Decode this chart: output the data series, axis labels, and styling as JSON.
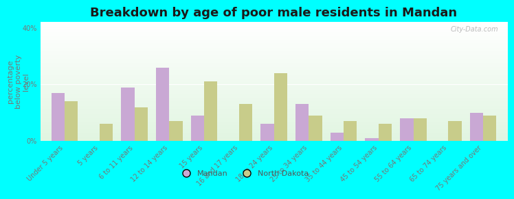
{
  "title": "Breakdown by age of poor male residents in Mandan",
  "ylabel": "percentage\nbelow poverty\nlevel",
  "categories": [
    "Under 5 years",
    "5 years",
    "6 to 11 years",
    "12 to 14 years",
    "15 years",
    "16 and 17 years",
    "18 to 24 years",
    "25 to 34 years",
    "35 to 44 years",
    "45 to 54 years",
    "55 to 64 years",
    "65 to 74 years",
    "75 years and over"
  ],
  "mandan_values": [
    17,
    0,
    19,
    26,
    9,
    0,
    6,
    13,
    3,
    1,
    8,
    0,
    10
  ],
  "nd_values": [
    14,
    6,
    12,
    7,
    21,
    13,
    24,
    9,
    7,
    6,
    8,
    7,
    9
  ],
  "mandan_color": "#c9a8d4",
  "nd_color": "#c8cc8a",
  "outer_background": "#00ffff",
  "ylim": [
    0,
    42
  ],
  "yticks": [
    0,
    20,
    40
  ],
  "ytick_labels": [
    "0%",
    "20%",
    "40%"
  ],
  "bar_width": 0.38,
  "title_fontsize": 13,
  "axis_label_fontsize": 8,
  "tick_fontsize": 7,
  "legend_entries": [
    "Mandan",
    "North Dakota"
  ],
  "watermark": "City-Data.com"
}
